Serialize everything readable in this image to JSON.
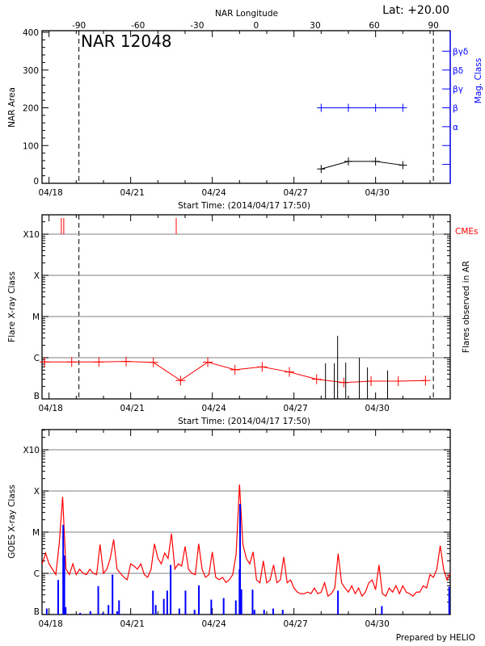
{
  "header": {
    "lat_label": "Lat: +20.00",
    "longitude_axis_label": "NAR Longitude",
    "footer": "Prepared by HELIO"
  },
  "colors": {
    "area": "#000000",
    "mag_class": "#0000ff",
    "flare_class": "#ff0000",
    "cme": "#ff0000",
    "goes_flux": "#ff0000",
    "goes_events": "#0000ff",
    "grid": "#999999"
  },
  "time_axis": {
    "start": "04/17 17:50",
    "end": "05/02 17:50",
    "year": 2014,
    "tick_labels": [
      "04/18",
      "04/21",
      "04/24",
      "04/27",
      "04/30"
    ],
    "label": "Start Time: (2014/04/17 17:50)"
  },
  "chart_data": [
    {
      "type": "line",
      "title": "NAR 12048",
      "ylabel": "NAR Area",
      "ylim": [
        0,
        400
      ],
      "yticks": [
        0,
        100,
        200,
        300,
        400
      ],
      "longitude_axis": {
        "ticks": [
          -90,
          -60,
          -30,
          0,
          30,
          60,
          90
        ],
        "central_meridian_time": "04/25 14:40",
        "deg_per_day": 13.82,
        "limb_markers": [
          -90,
          90
        ]
      },
      "right_axis": {
        "label": "Mag. Class",
        "classes": [
          "α",
          "β",
          "βγ",
          "βδ",
          "βγδ"
        ]
      },
      "series": [
        {
          "key": "area",
          "x": [
            "04/28 00:00",
            "04/29 00:00",
            "04/30 00:00",
            "05/01 00:00"
          ],
          "y": [
            38,
            58,
            58,
            48
          ]
        },
        {
          "key": "mag_class",
          "x": [
            "04/28 00:00",
            "04/29 00:00",
            "04/30 00:00",
            "05/01 00:00"
          ],
          "y": [
            "β",
            "β",
            "β",
            "β"
          ]
        }
      ]
    },
    {
      "type": "line",
      "ylabel": "Flare X-ray Class",
      "right_label": "Flares observed in AR",
      "cme_label": "CMEs",
      "scale": "log",
      "ylim": [
        1e-07,
        0.003
      ],
      "yticks": [
        {
          "v": 1e-07,
          "label": "B"
        },
        {
          "v": 1e-06,
          "label": "C"
        },
        {
          "v": 1e-05,
          "label": "M"
        },
        {
          "v": 0.0001,
          "label": "X"
        },
        {
          "v": 0.001,
          "label": "X10"
        }
      ],
      "grid": true,
      "flare_background": {
        "x": [
          "04/17 20:00",
          "04/18 20:00",
          "04/19 20:00",
          "04/20 20:00",
          "04/21 20:00",
          "04/22 20:00",
          "04/23 20:00",
          "04/24 20:00",
          "04/25 20:00",
          "04/26 20:00",
          "04/27 20:00",
          "04/28 20:00",
          "04/29 20:00",
          "04/30 20:00",
          "05/01 20:00"
        ],
        "y": [
          7.9e-07,
          7.9e-07,
          7.9e-07,
          8.1e-07,
          7.7e-07,
          2.8e-07,
          7.8e-07,
          5.1e-07,
          6e-07,
          4.5e-07,
          3e-07,
          2.5e-07,
          2.7e-07,
          2.7e-07,
          2.8e-07
        ]
      },
      "flares": {
        "x": [
          "04/28 03:50",
          "04/28 11:35",
          "04/28 14:30",
          "04/28 21:40",
          "04/29 09:40",
          "04/29 16:50",
          "04/30 10:35"
        ],
        "y": [
          7.3e-07,
          7.3e-07,
          3.4e-06,
          7.6e-07,
          1e-06,
          5.8e-07,
          4.9e-07
        ]
      },
      "cmes": [
        "04/18 10:50",
        "04/18 13:00",
        "04/22 16:10"
      ]
    },
    {
      "type": "line",
      "ylabel": "GOES X-ray Class",
      "scale": "log",
      "ylim": [
        1e-07,
        0.003
      ],
      "yticks": [
        {
          "v": 1e-07,
          "label": "B"
        },
        {
          "v": 1e-06,
          "label": "C"
        },
        {
          "v": 1e-05,
          "label": "M"
        },
        {
          "v": 0.0001,
          "label": "X"
        },
        {
          "v": 0.001,
          "label": "X10"
        }
      ],
      "grid": true,
      "goes_flux": {
        "start": "04/17 18:00",
        "step_hours": 3,
        "y": [
          1.7e-06,
          3.1e-06,
          1.7e-06,
          1.26e-06,
          9.3e-07,
          5.2e-06,
          7.2e-05,
          1.26e-06,
          9.3e-07,
          1.7e-06,
          9.3e-07,
          1.26e-06,
          1e-06,
          9.3e-07,
          1.26e-06,
          1e-06,
          9.3e-07,
          5e-06,
          1e-06,
          1.26e-06,
          2.3e-06,
          6.6e-06,
          1.26e-06,
          1e-06,
          8e-07,
          7e-07,
          1.7e-06,
          1.5e-06,
          1.26e-06,
          1.7e-06,
          9.3e-07,
          8e-07,
          1.26e-06,
          5.2e-06,
          2.3e-06,
          1.7e-06,
          3.1e-06,
          2.3e-06,
          9.2e-06,
          1.26e-06,
          1.7e-06,
          1.5e-06,
          4.5e-06,
          1.26e-06,
          1e-06,
          9.3e-07,
          5.2e-06,
          1.26e-06,
          8e-07,
          9.3e-07,
          3.3e-06,
          8e-07,
          7e-07,
          8e-07,
          6e-07,
          7e-07,
          9.3e-07,
          2.9e-06,
          0.000143,
          5e-06,
          2.3e-06,
          1.7e-06,
          3.3e-06,
          6.9e-07,
          5.9e-07,
          2e-06,
          5.9e-07,
          6.9e-07,
          1.6e-06,
          5.9e-07,
          6.9e-07,
          2.5e-06,
          5.9e-07,
          6.9e-07,
          4.4e-07,
          3.5e-07,
          3.2e-07,
          3.2e-07,
          3.5e-07,
          3.2e-07,
          4.4e-07,
          3.2e-07,
          3.5e-07,
          5.9e-07,
          2.8e-07,
          3.2e-07,
          4.4e-07,
          3e-06,
          5.9e-07,
          4.4e-07,
          3.5e-07,
          5e-07,
          3.2e-07,
          4.4e-07,
          2.8e-07,
          3.5e-07,
          5.9e-07,
          6.9e-07,
          4e-07,
          1.6e-06,
          3.2e-07,
          2.8e-07,
          4.4e-07,
          3.5e-07,
          5e-07,
          3.2e-07,
          5e-07,
          3.5e-07,
          3.2e-07,
          2.8e-07,
          3.5e-07,
          3.5e-07,
          5e-07,
          4.4e-07,
          9.3e-07,
          8e-07,
          1.26e-06,
          4.7e-06,
          1.26e-06,
          6.9e-07,
          1e-06
        ]
      },
      "goes_events": {
        "x": [
          "04/17 22:00",
          "04/18 08:05",
          "04/18 12:30",
          "04/18 13:30",
          "04/18 14:40",
          "04/19 03:30",
          "04/19 12:30",
          "04/19 19:25",
          "04/19 23:30",
          "04/20 04:25",
          "04/20 08:00",
          "04/20 12:05",
          "04/20 13:45",
          "04/21 19:40",
          "04/21 22:05",
          "04/22 05:15",
          "04/22 08:15",
          "04/22 11:15",
          "04/22 18:55",
          "04/23 00:20",
          "04/23 08:20",
          "04/23 12:10",
          "04/23 23:05",
          "04/24 10:00",
          "04/24 20:45",
          "04/25 00:00",
          "04/25 00:30",
          "04/25 01:40",
          "04/25 11:30",
          "04/25 13:10",
          "04/25 21:40",
          "04/26 05:40",
          "04/26 14:05",
          "04/28 14:50",
          "04/30 05:30",
          "05/02 16:55"
        ],
        "y": [
          1.4e-07,
          6.9e-07,
          1.5e-05,
          2.7e-06,
          1.5e-07,
          1.1e-07,
          1.2e-07,
          4.9e-07,
          1.1e-07,
          1.7e-07,
          9.3e-07,
          1.2e-07,
          2.2e-07,
          3.8e-07,
          1.7e-07,
          2.4e-07,
          3.8e-07,
          1.6e-06,
          1.4e-07,
          3.8e-07,
          1.3e-07,
          5.1e-07,
          2.3e-07,
          2.5e-07,
          2.2e-07,
          1.26e-06,
          4.8e-05,
          4.1e-07,
          4e-07,
          1.3e-07,
          1.3e-07,
          1.4e-07,
          1.3e-07,
          3.8e-07,
          1.6e-07,
          4.7e-07
        ]
      }
    }
  ]
}
